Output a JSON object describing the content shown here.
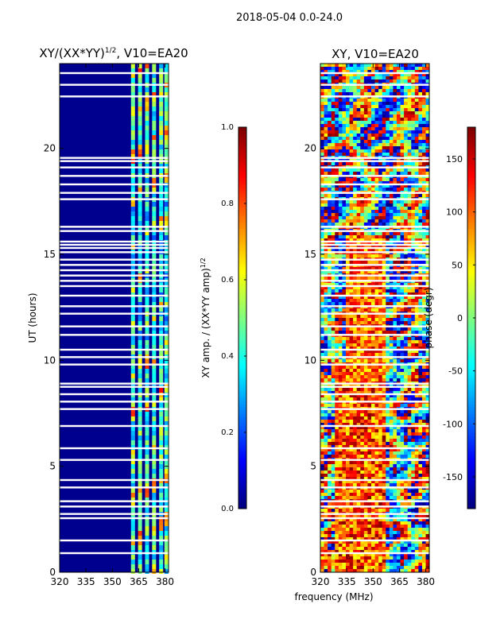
{
  "figure_title": "2018-05-04 0.0-24.0",
  "colors": {
    "background": "#ffffff",
    "axis": "#000000",
    "band": "#ffffff",
    "noise_low": "#00008f"
  },
  "chart_data": [
    {
      "type": "heatmap",
      "id": "amp",
      "title_main": "XY/(XX*YY)",
      "title_sup": "1/2",
      "title_tail": ", V10=EA20",
      "xlabel": "",
      "ylabel": "UT (hours)",
      "xlim": [
        320,
        382
      ],
      "ylim": [
        0,
        24
      ],
      "xticks": [
        320,
        335,
        350,
        365,
        380
      ],
      "yticks": [
        0,
        5,
        10,
        15,
        20
      ],
      "colormap": "jet",
      "colorbar": {
        "label_main": "XY amp. / (XX*YY amp)",
        "label_sup": "1/2",
        "range": [
          0,
          1
        ],
        "ticks": [
          "0.0",
          "0.2",
          "0.4",
          "0.6",
          "0.8",
          "1.0"
        ]
      },
      "signal_columns_mhz": [
        362,
        366,
        370,
        374,
        378,
        381
      ],
      "flagged_hours": [
        0.9,
        1.5,
        2.55,
        2.75,
        3.1,
        3.35,
        4.0,
        4.35,
        5.3,
        5.85,
        6.9,
        7.7,
        8.05,
        8.4,
        8.75,
        8.9,
        9.8,
        10.15,
        10.5,
        11.2,
        11.6,
        12.2,
        12.55,
        13.05,
        13.5,
        13.75,
        14.0,
        14.25,
        14.5,
        14.75,
        15.1,
        15.3,
        15.45,
        15.6,
        16.1,
        16.3,
        17.6,
        17.9,
        18.3,
        18.7,
        19.1,
        19.4,
        19.55,
        22.45,
        23.0,
        23.55
      ]
    },
    {
      "type": "heatmap",
      "id": "phase",
      "title": "XY, V10=EA20",
      "xlabel": "frequency (MHz)",
      "ylabel": "",
      "xlim": [
        320,
        382
      ],
      "ylim": [
        0,
        24
      ],
      "xticks": [
        320,
        335,
        350,
        365,
        380
      ],
      "yticks": [
        0,
        5,
        10,
        15,
        20
      ],
      "colormap": "jet",
      "colorbar": {
        "label": "phase (degr)",
        "range": [
          -180,
          180
        ],
        "ticks": [
          -150,
          -100,
          -50,
          0,
          50,
          100,
          150
        ]
      },
      "flagged_hours": [
        0.9,
        1.5,
        2.55,
        2.75,
        3.1,
        3.35,
        4.0,
        4.35,
        5.3,
        5.85,
        6.9,
        7.7,
        8.05,
        8.4,
        8.75,
        8.9,
        9.8,
        10.15,
        10.5,
        11.2,
        11.6,
        12.2,
        12.55,
        13.05,
        13.5,
        13.75,
        14.0,
        14.25,
        14.5,
        14.75,
        15.1,
        15.3,
        15.45,
        15.6,
        16.1,
        16.3,
        17.6,
        17.9,
        18.3,
        18.7,
        19.1,
        19.4,
        19.55,
        22.45,
        23.0,
        23.55
      ]
    }
  ]
}
